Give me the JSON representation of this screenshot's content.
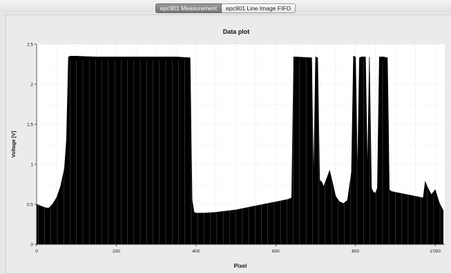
{
  "tabs": [
    {
      "label": "epc901 Measurement",
      "active": true
    },
    {
      "label": "epc901 Line Image FIFO",
      "active": false
    }
  ],
  "chart_data": {
    "type": "bar",
    "title": "Data plot",
    "xlabel": "Pixel",
    "ylabel": "Voltage [V]",
    "xlim": [
      0,
      1024
    ],
    "ylim": [
      0,
      2.5
    ],
    "grid": true,
    "x_ticks": [
      0,
      200,
      400,
      600,
      800,
      1000
    ],
    "x_tick_labels": [
      "0",
      "200",
      "400",
      "600",
      "800",
      "1'000"
    ],
    "y_ticks": [
      0,
      0.5,
      1,
      1.5,
      2,
      2.5
    ],
    "y_tick_labels": [
      "0",
      "0.5",
      "1",
      "1.5",
      "2",
      "2.5"
    ],
    "series": [
      {
        "x": [
          0,
          10,
          20,
          30,
          40,
          50,
          60,
          70,
          75,
          80,
          85,
          100,
          150,
          200,
          250,
          300,
          350,
          385,
          390,
          395,
          400,
          420,
          450,
          500,
          550,
          600,
          630,
          640,
          645,
          650,
          690,
          695,
          700,
          705,
          710,
          715,
          720,
          730,
          735,
          740,
          750,
          760,
          770,
          780,
          790,
          795,
          800,
          805,
          810,
          815,
          820,
          825,
          830,
          835,
          840,
          845,
          850,
          855,
          860,
          865,
          870,
          880,
          885,
          890,
          900,
          950,
          970,
          975,
          980,
          990,
          1000,
          1010,
          1020
        ],
        "values": [
          0.5,
          0.48,
          0.46,
          0.45,
          0.5,
          0.58,
          0.72,
          0.95,
          1.3,
          2.34,
          2.35,
          2.35,
          2.34,
          2.34,
          2.34,
          2.34,
          2.34,
          2.33,
          0.55,
          0.4,
          0.39,
          0.39,
          0.4,
          0.43,
          0.48,
          0.53,
          0.56,
          0.58,
          2.34,
          2.34,
          2.33,
          0.75,
          2.34,
          2.33,
          0.8,
          0.78,
          0.72,
          0.85,
          0.92,
          0.82,
          0.6,
          0.53,
          0.51,
          0.55,
          0.9,
          2.35,
          2.34,
          0.85,
          2.33,
          2.34,
          2.34,
          2.34,
          0.85,
          2.34,
          0.7,
          0.65,
          0.64,
          0.7,
          2.34,
          2.34,
          2.34,
          2.33,
          0.68,
          0.66,
          0.65,
          0.6,
          0.58,
          0.78,
          0.72,
          0.62,
          0.68,
          0.52,
          0.42
        ]
      }
    ]
  }
}
